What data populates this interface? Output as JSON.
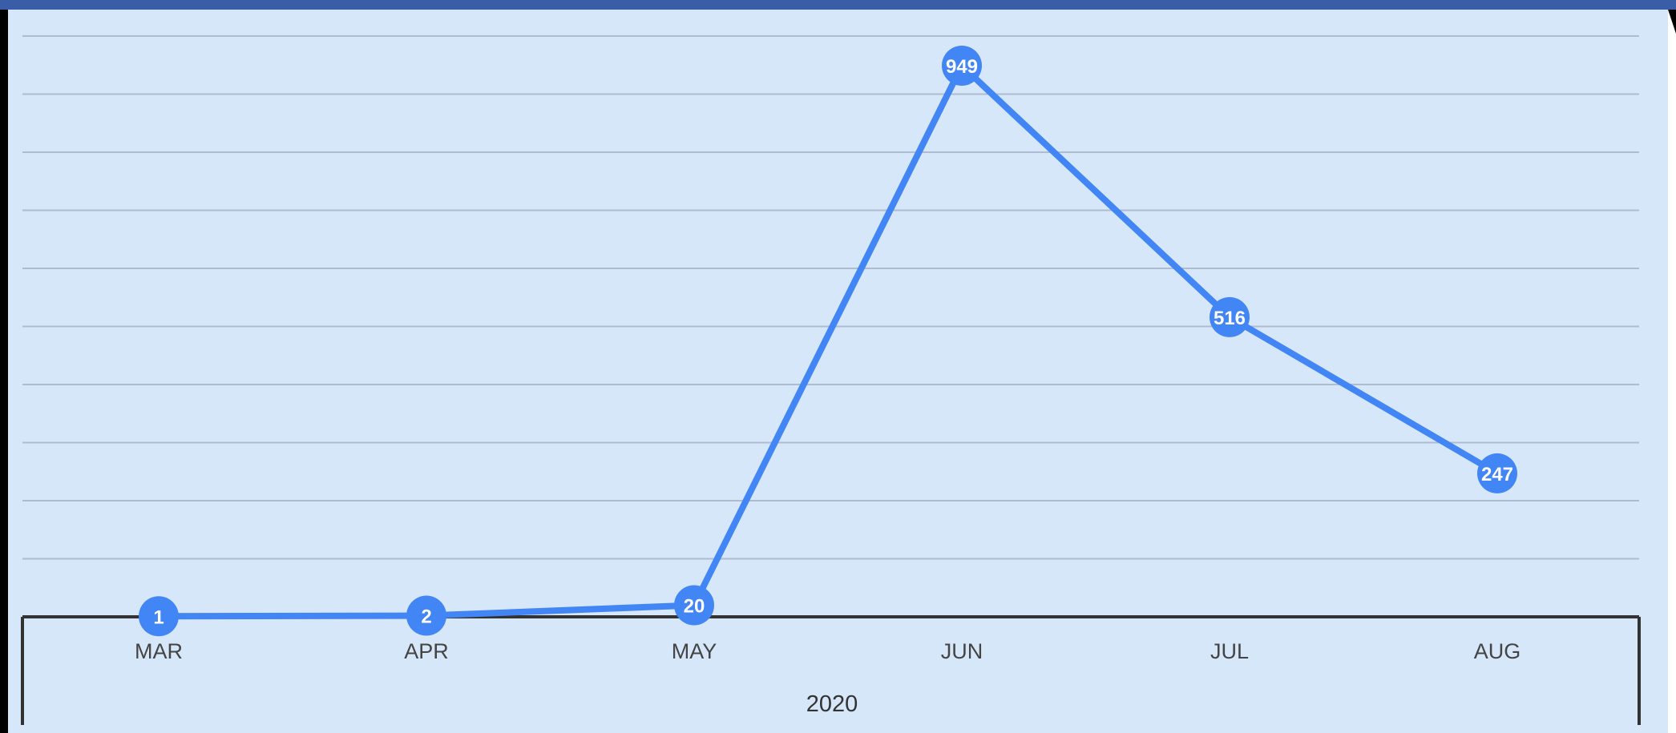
{
  "colors": {
    "header": "#3a5da8",
    "panel": "#d7e7fa",
    "line": "#4285f4",
    "point": "#4285f4",
    "grid": "#aebbd0",
    "axis": "#333333"
  },
  "chart_data": {
    "type": "line",
    "categories": [
      "MAR",
      "APR",
      "MAY",
      "JUN",
      "JUL",
      "AUG"
    ],
    "series": [
      {
        "values": [
          1,
          2,
          20,
          949,
          516,
          247
        ]
      }
    ],
    "group_label": "2020",
    "ylim": [
      0,
      1000
    ],
    "grid": true,
    "legend": "none",
    "data_labels": true
  }
}
